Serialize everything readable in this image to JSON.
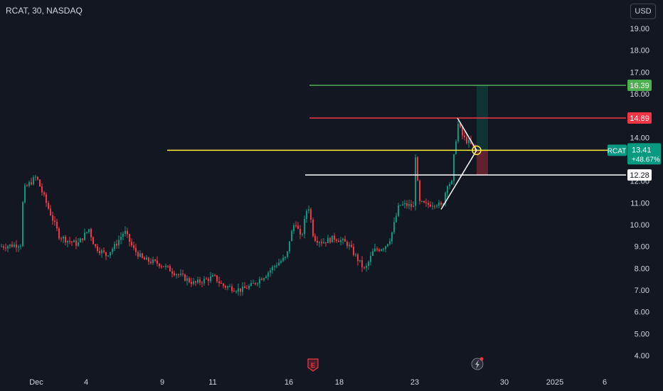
{
  "header": {
    "title": "RCAT, 30, NASDAQ"
  },
  "currency_button": "USD",
  "chart_data": {
    "type": "candlestick",
    "symbol": "RCAT",
    "interval": "30",
    "exchange": "NASDAQ",
    "ylim": [
      3.6,
      19.4
    ],
    "y_ticks": [
      "19.00",
      "18.00",
      "17.00",
      "16.00",
      "15.00",
      "14.00",
      "13.00",
      "12.00",
      "11.00",
      "10.00",
      "9.00",
      "8.00",
      "7.00",
      "6.00",
      "5.00",
      "4.00"
    ],
    "x_ticks": [
      "Dec",
      "4",
      "9",
      "11",
      "16",
      "18",
      "23",
      "30",
      "2025",
      "6"
    ],
    "price_series": [
      [
        "Nov 27",
        9.0
      ],
      [
        "Nov 29",
        9.1
      ],
      [
        "Dec 2 open",
        11.8
      ],
      [
        "Dec 2",
        12.4
      ],
      [
        "Dec 2 close",
        11.5
      ],
      [
        "Dec 3",
        10.4
      ],
      [
        "Dec 3 close",
        9.3
      ],
      [
        "Dec 4",
        9.7
      ],
      [
        "Dec 4 close",
        9.2
      ],
      [
        "Dec 5",
        8.7
      ],
      [
        "Dec 6",
        9.8
      ],
      [
        "Dec 6 close",
        9.0
      ],
      [
        "Dec 9",
        8.2
      ],
      [
        "Dec 10",
        7.6
      ],
      [
        "Dec 10 close",
        7.3
      ],
      [
        "Dec 11",
        7.8
      ],
      [
        "Dec 11 close",
        7.3
      ],
      [
        "Dec 12",
        7.0
      ],
      [
        "Dec 13",
        7.3
      ],
      [
        "Dec 13 close",
        7.9
      ],
      [
        "Dec 16",
        9.2
      ],
      [
        "Dec 16 close",
        10.6
      ],
      [
        "Dec 17",
        9.5
      ],
      [
        "Dec 17 close",
        9.8
      ],
      [
        "Dec 18",
        9.0
      ],
      [
        "Dec 18 close",
        8.4
      ],
      [
        "Dec 19",
        8.0
      ],
      [
        "Dec 19 close",
        8.9
      ],
      [
        "Dec 20",
        10.2
      ],
      [
        "Dec 20 close",
        11.1
      ],
      [
        "Dec 23",
        13.9
      ],
      [
        "Dec 23 close",
        11.0
      ],
      [
        "Dec 24",
        10.8
      ],
      [
        "Dec 24 close",
        11.8
      ],
      [
        "Dec 26",
        14.6
      ],
      [
        "Dec 26 close",
        13.41
      ]
    ],
    "horizontal_levels": [
      {
        "price": 16.39,
        "label": "16.39",
        "color": "#4caf50"
      },
      {
        "price": 14.89,
        "label": "14.89",
        "color": "#f23645"
      },
      {
        "price": 13.41,
        "label": "13.41",
        "color": "#ffeb3b"
      },
      {
        "price": 12.28,
        "label": "12.28",
        "color": "#ffffff"
      }
    ],
    "current_price": {
      "symbol": "RCAT",
      "price": "13.41",
      "change": "+48.67%",
      "color": "#089981"
    },
    "long_position": {
      "entry": 13.41,
      "target": 16.39,
      "stop": 12.28
    },
    "triangle_pattern": {
      "apex_price": 13.41,
      "upper_start_price": 14.89,
      "lower_start_price": 10.7
    },
    "event_markers": [
      "E",
      "dividend-lightning"
    ],
    "grid": false,
    "colors": {
      "up": "#089981",
      "down": "#f23645",
      "background": "#131722",
      "axis_text": "#d1d4dc"
    }
  }
}
